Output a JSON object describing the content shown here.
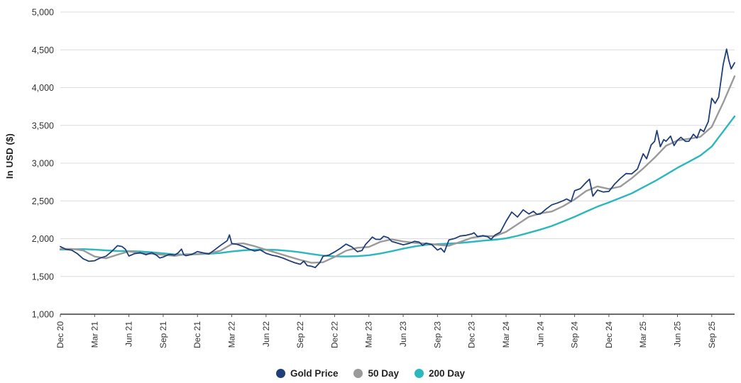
{
  "chart_data": {
    "type": "line",
    "ylabel": "In USD ($)",
    "ylim": [
      1000,
      5000
    ],
    "x_max": 59,
    "grid": true,
    "legend_position": "bottom-center",
    "y_ticks": [
      {
        "value": 1000,
        "label": "1,000"
      },
      {
        "value": 1500,
        "label": "1,500"
      },
      {
        "value": 2000,
        "label": "2,000"
      },
      {
        "value": 2500,
        "label": "2,500"
      },
      {
        "value": 3000,
        "label": "3,000"
      },
      {
        "value": 3500,
        "label": "3,500"
      },
      {
        "value": 4000,
        "label": "4,000"
      },
      {
        "value": 4500,
        "label": "4,500"
      },
      {
        "value": 5000,
        "label": "5,000"
      }
    ],
    "x_ticks": [
      {
        "month": 0,
        "label": "Dec 20"
      },
      {
        "month": 3,
        "label": "Mar 21"
      },
      {
        "month": 6,
        "label": "Jun 21"
      },
      {
        "month": 9,
        "label": "Sep 21"
      },
      {
        "month": 12,
        "label": "Dec 21"
      },
      {
        "month": 15,
        "label": "Mar 22"
      },
      {
        "month": 18,
        "label": "Jun 22"
      },
      {
        "month": 21,
        "label": "Sep 22"
      },
      {
        "month": 24,
        "label": "Dec 22"
      },
      {
        "month": 27,
        "label": "Mar 23"
      },
      {
        "month": 30,
        "label": "Jun 23"
      },
      {
        "month": 33,
        "label": "Sep 23"
      },
      {
        "month": 36,
        "label": "Dec 23"
      },
      {
        "month": 39,
        "label": "Mar 24"
      },
      {
        "month": 42,
        "label": "Jun 24"
      },
      {
        "month": 45,
        "label": "Sep 24"
      },
      {
        "month": 48,
        "label": "Dec 24"
      },
      {
        "month": 51,
        "label": "Mar 25"
      },
      {
        "month": 54,
        "label": "Jun 25"
      },
      {
        "month": 57,
        "label": "Sep 25"
      }
    ],
    "legend": [
      {
        "label": "Gold Price",
        "color": "#1e3f77"
      },
      {
        "label": "50 Day",
        "color": "#9a9a9a"
      },
      {
        "label": "200 Day",
        "color": "#2bb8bd"
      }
    ],
    "series": [
      {
        "name": "Gold Price",
        "color": "#1e3f77",
        "width": 1.8,
        "points": [
          [
            0,
            1895
          ],
          [
            0.5,
            1858
          ],
          [
            1,
            1848
          ],
          [
            1.5,
            1800
          ],
          [
            2,
            1734
          ],
          [
            2.5,
            1700
          ],
          [
            3,
            1708
          ],
          [
            3.5,
            1745
          ],
          [
            4,
            1768
          ],
          [
            4.5,
            1832
          ],
          [
            5,
            1907
          ],
          [
            5.4,
            1896
          ],
          [
            5.7,
            1858
          ],
          [
            6,
            1770
          ],
          [
            6.5,
            1802
          ],
          [
            7,
            1814
          ],
          [
            7.5,
            1788
          ],
          [
            8,
            1814
          ],
          [
            8.4,
            1782
          ],
          [
            8.7,
            1745
          ],
          [
            9,
            1757
          ],
          [
            9.5,
            1792
          ],
          [
            10,
            1783
          ],
          [
            10.3,
            1810
          ],
          [
            10.6,
            1862
          ],
          [
            10.8,
            1788
          ],
          [
            11,
            1775
          ],
          [
            11.5,
            1792
          ],
          [
            12,
            1829
          ],
          [
            12.5,
            1812
          ],
          [
            13,
            1797
          ],
          [
            13.5,
            1852
          ],
          [
            14,
            1909
          ],
          [
            14.6,
            1974
          ],
          [
            14.8,
            2050
          ],
          [
            15,
            1937
          ],
          [
            15.5,
            1924
          ],
          [
            16,
            1897
          ],
          [
            16.5,
            1862
          ],
          [
            17,
            1837
          ],
          [
            17.5,
            1852
          ],
          [
            18,
            1807
          ],
          [
            18.5,
            1782
          ],
          [
            19,
            1766
          ],
          [
            19.5,
            1742
          ],
          [
            20,
            1711
          ],
          [
            20.5,
            1682
          ],
          [
            21,
            1661
          ],
          [
            21.3,
            1702
          ],
          [
            21.6,
            1644
          ],
          [
            22,
            1634
          ],
          [
            22.3,
            1618
          ],
          [
            22.7,
            1682
          ],
          [
            23,
            1769
          ],
          [
            23.5,
            1782
          ],
          [
            24,
            1824
          ],
          [
            24.5,
            1872
          ],
          [
            25,
            1928
          ],
          [
            25.5,
            1892
          ],
          [
            26,
            1827
          ],
          [
            26.4,
            1844
          ],
          [
            26.7,
            1922
          ],
          [
            27,
            1969
          ],
          [
            27.3,
            2022
          ],
          [
            27.6,
            1992
          ],
          [
            28,
            1990
          ],
          [
            28.3,
            2032
          ],
          [
            28.7,
            2012
          ],
          [
            29,
            1963
          ],
          [
            29.5,
            1942
          ],
          [
            30,
            1919
          ],
          [
            30.5,
            1936
          ],
          [
            31,
            1965
          ],
          [
            31.4,
            1954
          ],
          [
            31.7,
            1912
          ],
          [
            32,
            1940
          ],
          [
            32.5,
            1922
          ],
          [
            33,
            1849
          ],
          [
            33.3,
            1872
          ],
          [
            33.6,
            1822
          ],
          [
            34,
            1984
          ],
          [
            34.5,
            2002
          ],
          [
            35,
            2036
          ],
          [
            35.5,
            2044
          ],
          [
            36,
            2063
          ],
          [
            36.2,
            2078
          ],
          [
            36.5,
            2028
          ],
          [
            37,
            2040
          ],
          [
            37.4,
            2024
          ],
          [
            37.7,
            1992
          ],
          [
            38,
            2044
          ],
          [
            38.5,
            2086
          ],
          [
            39,
            2230
          ],
          [
            39.5,
            2352
          ],
          [
            40,
            2286
          ],
          [
            40.5,
            2382
          ],
          [
            41,
            2327
          ],
          [
            41.4,
            2362
          ],
          [
            41.7,
            2322
          ],
          [
            42,
            2327
          ],
          [
            42.5,
            2392
          ],
          [
            43,
            2448
          ],
          [
            43.5,
            2472
          ],
          [
            44,
            2503
          ],
          [
            44.3,
            2526
          ],
          [
            44.7,
            2494
          ],
          [
            45,
            2635
          ],
          [
            45.5,
            2662
          ],
          [
            46,
            2744
          ],
          [
            46.3,
            2788
          ],
          [
            46.6,
            2562
          ],
          [
            47,
            2643
          ],
          [
            47.5,
            2618
          ],
          [
            48,
            2625
          ],
          [
            48.5,
            2722
          ],
          [
            49,
            2798
          ],
          [
            49.5,
            2862
          ],
          [
            50,
            2858
          ],
          [
            50.5,
            2922
          ],
          [
            51,
            3124
          ],
          [
            51.3,
            3058
          ],
          [
            51.7,
            3242
          ],
          [
            52,
            3289
          ],
          [
            52.2,
            3432
          ],
          [
            52.5,
            3218
          ],
          [
            52.8,
            3312
          ],
          [
            53,
            3289
          ],
          [
            53.4,
            3358
          ],
          [
            53.7,
            3232
          ],
          [
            54,
            3303
          ],
          [
            54.3,
            3342
          ],
          [
            54.7,
            3288
          ],
          [
            55,
            3290
          ],
          [
            55.4,
            3382
          ],
          [
            55.7,
            3332
          ],
          [
            56,
            3448
          ],
          [
            56.3,
            3418
          ],
          [
            56.7,
            3552
          ],
          [
            57,
            3859
          ],
          [
            57.3,
            3792
          ],
          [
            57.6,
            3872
          ],
          [
            58,
            4306
          ],
          [
            58.3,
            4510
          ],
          [
            58.5,
            4358
          ],
          [
            58.7,
            4248
          ],
          [
            59,
            4330
          ]
        ]
      },
      {
        "name": "50 Day",
        "color": "#9a9a9a",
        "width": 2.4,
        "values": [
          1865,
          1865,
          1845,
          1763,
          1740,
          1788,
          1832,
          1808,
          1800,
          1786,
          1772,
          1794,
          1796,
          1806,
          1840,
          1928,
          1938,
          1900,
          1853,
          1808,
          1762,
          1718,
          1680,
          1688,
          1758,
          1840,
          1880,
          1890,
          1958,
          1992,
          1963,
          1945,
          1936,
          1918,
          1906,
          1958,
          2012,
          2035,
          2033,
          2090,
          2190,
          2290,
          2335,
          2360,
          2430,
          2520,
          2630,
          2692,
          2658,
          2690,
          2800,
          2930,
          3072,
          3230,
          3300,
          3322,
          3348,
          3480,
          3800,
          4150
        ]
      },
      {
        "name": "200 Day",
        "color": "#2bb8bd",
        "width": 2.4,
        "values": [
          1855,
          1860,
          1862,
          1855,
          1845,
          1838,
          1835,
          1830,
          1820,
          1806,
          1792,
          1790,
          1794,
          1800,
          1810,
          1830,
          1845,
          1854,
          1855,
          1850,
          1838,
          1820,
          1796,
          1776,
          1766,
          1764,
          1768,
          1780,
          1804,
          1834,
          1868,
          1898,
          1918,
          1928,
          1934,
          1944,
          1958,
          1974,
          1986,
          2004,
          2038,
          2078,
          2120,
          2168,
          2228,
          2290,
          2358,
          2424,
          2480,
          2540,
          2600,
          2680,
          2760,
          2848,
          2938,
          3018,
          3100,
          3220,
          3420,
          3620
        ]
      }
    ]
  }
}
